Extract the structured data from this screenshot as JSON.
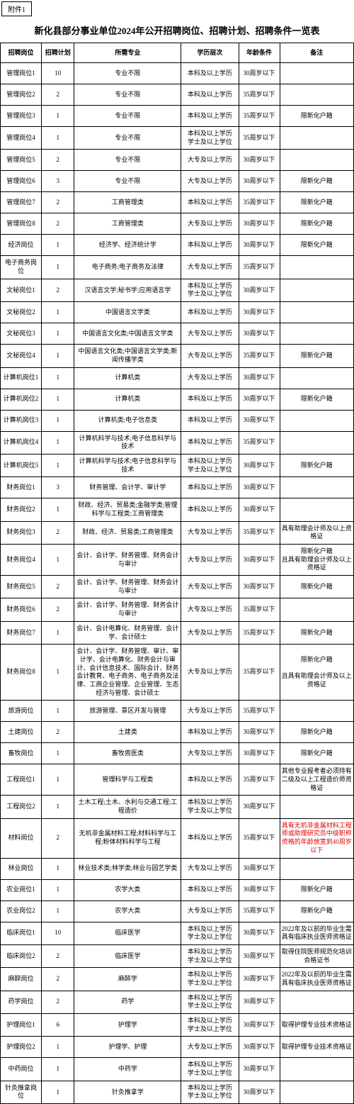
{
  "attachment": "附件1",
  "title": "新化县部分事业单位2024年公开招聘岗位、招聘计划、招聘条件一览表",
  "headers": [
    "招聘岗位",
    "招聘计划",
    "所需专业",
    "学历层次",
    "年龄条件",
    "备注"
  ],
  "rows": [
    {
      "pos": "管理岗位1",
      "plan": "10",
      "major": "专业不限",
      "edu": "本科及以上学历",
      "age": "30周岁以下",
      "remark": ""
    },
    {
      "pos": "管理岗位2",
      "plan": "2",
      "major": "专业不限",
      "edu": "本科及以上学历",
      "age": "35周岁以下",
      "remark": ""
    },
    {
      "pos": "管理岗位3",
      "plan": "1",
      "major": "专业不限",
      "edu": "本科及以上学历",
      "age": "35周岁以下",
      "remark": "限新化户籍"
    },
    {
      "pos": "管理岗位4",
      "plan": "1",
      "major": "专业不限",
      "edu": "本科及以上学历\n学士及以上学位",
      "age": "35周岁以下",
      "remark": ""
    },
    {
      "pos": "管理岗位5",
      "plan": "2",
      "major": "专业不限",
      "edu": "大专及以上学历",
      "age": "30周岁以下",
      "remark": ""
    },
    {
      "pos": "管理岗位6",
      "plan": "3",
      "major": "专业不限",
      "edu": "大专及以上学历",
      "age": "30周岁以下",
      "remark": "限新化户籍"
    },
    {
      "pos": "管理岗位7",
      "plan": "2",
      "major": "工商管理类",
      "edu": "本科及以上学历",
      "age": "35周岁以下",
      "remark": "限新化户籍"
    },
    {
      "pos": "管理岗位8",
      "plan": "2",
      "major": "工商管理类",
      "edu": "大专及以上学历",
      "age": "30周岁以下",
      "remark": "限新化户籍"
    },
    {
      "pos": "经济岗位",
      "plan": "1",
      "major": "经济学、经济统计学",
      "edu": "本科及以上学历",
      "age": "30周岁以下",
      "remark": "限新化户籍"
    },
    {
      "pos": "电子商务岗位",
      "plan": "1",
      "major": "电子商务;电子商务及法律",
      "edu": "大专及以上学历",
      "age": "35周岁以下",
      "remark": ""
    },
    {
      "pos": "文秘岗位1",
      "plan": "2",
      "major": "汉语言文学;秘书学;应用语言学",
      "edu": "本科及以上学历\n学士及以上学位",
      "age": "30周岁以下",
      "remark": ""
    },
    {
      "pos": "文秘岗位2",
      "plan": "1",
      "major": "中国语言文学类",
      "edu": "本科及以上学历",
      "age": "30周岁以下",
      "remark": ""
    },
    {
      "pos": "文秘岗位3",
      "plan": "1",
      "major": "中国语言文化类;中国语言文学类",
      "edu": "大专及以上学历",
      "age": "30周岁以下",
      "remark": ""
    },
    {
      "pos": "文秘岗位4",
      "plan": "1",
      "major": "中国语言文化类;中国语言文学类;新闻传播学类",
      "edu": "大专及以上学历",
      "age": "35周岁以下",
      "remark": "限新化户籍"
    },
    {
      "pos": "计算机岗位1",
      "plan": "1",
      "major": "计算机类",
      "edu": "大专及以上学历",
      "age": "30周岁以下",
      "remark": ""
    },
    {
      "pos": "计算机岗位2",
      "plan": "1",
      "major": "计算机类",
      "edu": "本科及以上学历",
      "age": "30周岁以下",
      "remark": "限新化户籍"
    },
    {
      "pos": "计算机岗位3",
      "plan": "1",
      "major": "计算机类;电子信息类",
      "edu": "本科及以上学历",
      "age": "30周岁以下",
      "remark": ""
    },
    {
      "pos": "计算机岗位4",
      "plan": "1",
      "major": "计算机科学与技术;电子信息科学与技术",
      "edu": "本科及以上学历",
      "age": "35周岁以下",
      "remark": ""
    },
    {
      "pos": "计算机岗位5",
      "plan": "1",
      "major": "计算机科学与技术;电子信息科学与技术",
      "edu": "本科及以上学历\n学士及以上学位",
      "age": "30周岁以下",
      "remark": "限新化户籍"
    },
    {
      "pos": "财务岗位1",
      "plan": "3",
      "major": "财务管理、会计学、审计学",
      "edu": "本科及以上学历",
      "age": "30周岁以下",
      "remark": ""
    },
    {
      "pos": "财务岗位2",
      "plan": "1",
      "major": "财政、经济、贸易类;金融学类;管理科学与工程类;工商管理类",
      "edu": "本科及以上学历",
      "age": "30周岁以下",
      "remark": ""
    },
    {
      "pos": "财务岗位3",
      "plan": "2",
      "major": "财政、经济、贸易类;工商管理类",
      "edu": "大专及以上学历",
      "age": "35周岁以下",
      "remark": "具有助理会计师及以上资格证"
    },
    {
      "pos": "财务岗位4",
      "plan": "1",
      "major": "会计、会计学、财务管理、财务会计与审计",
      "edu": "大专及以上学历",
      "age": "30周岁以下",
      "remark": "限新化户籍\n且具有助理会计师及以上资格证"
    },
    {
      "pos": "财务岗位5",
      "plan": "2",
      "major": "会计、会计学、财务管理、财务会计与审计",
      "edu": "大专及以上学历",
      "age": "30周岁以下",
      "remark": "限新化户籍"
    },
    {
      "pos": "财务岗位6",
      "plan": "2",
      "major": "会计、会计学、财务管理、财务会计与审计",
      "edu": "大专及以上学历",
      "age": "35周岁以下",
      "remark": ""
    },
    {
      "pos": "财务岗位7",
      "plan": "1",
      "major": "会计、会计电算化、财务管理、会计学、会计硕士",
      "edu": "大专及以上学历",
      "age": "35周岁以下",
      "remark": "限新化户籍"
    },
    {
      "pos": "财务岗位8",
      "plan": "1",
      "major": "会计、会计学、财务管理、审计、审计学、会计电算化、财务会计与审计、会计信息技术、国际会计、财务会计教育、电子商务、电子商务及法律、工商企业管理、企业管理、生态经济与管理、会计硕士",
      "edu": "大专及以上学历",
      "age": "35周岁以下",
      "remark": "限新化户籍\n\n且具有助理会计师及以上资格证"
    },
    {
      "pos": "旅游岗位",
      "plan": "1",
      "major": "旅游管理、景区开发与管理",
      "edu": "大专及以上学历",
      "age": "35周岁以下",
      "remark": ""
    },
    {
      "pos": "土建岗位",
      "plan": "2",
      "major": "土建类",
      "edu": "本科及以上学历",
      "age": "30周岁以下",
      "remark": "限新化户籍"
    },
    {
      "pos": "畜牧岗位",
      "plan": "1",
      "major": "畜牧兽医类",
      "edu": "大专及以上学历",
      "age": "30周岁以下",
      "remark": "限新化户籍"
    },
    {
      "pos": "工程岗位1",
      "plan": "1",
      "major": "管理科学与工程类",
      "edu": "本科及以上学历",
      "age": "35周岁以下",
      "remark": "其他专业报考者必须持有二级及以上工程造价师资格证"
    },
    {
      "pos": "工程岗位2",
      "plan": "1",
      "major": "土木工程;土木、水利与交通工程;工程造价",
      "edu": "本科及以上学历\n学士及以上学位",
      "age": "30周岁以下",
      "remark": ""
    },
    {
      "pos": "材料岗位",
      "plan": "2",
      "major": "无机非金属材料工程;材料科学与工程;粉体材料科学与工程",
      "edu": "本科及以上学历",
      "age": "35周岁以下",
      "remark": "具有无机非金属材料工程师或助理研究员中级职称资格的年龄放宽到40周岁以下",
      "remarkRed": true
    },
    {
      "pos": "林业岗位",
      "plan": "1",
      "major": "林业技术类;林学类;林业与园艺学类",
      "edu": "大专及以上学历",
      "age": "30周岁以下",
      "remark": ""
    },
    {
      "pos": "农业岗位1",
      "plan": "1",
      "major": "农学大类",
      "edu": "本科及以上学历",
      "age": "30周岁以下",
      "remark": "限新化户籍"
    },
    {
      "pos": "农业岗位2",
      "plan": "1",
      "major": "农学大类",
      "edu": "大专及以上学历",
      "age": "35周岁以下",
      "remark": "限新化户籍"
    },
    {
      "pos": "临床岗位1",
      "plan": "10",
      "major": "临床医学",
      "edu": "本科及以上学历\n学士及以上学位",
      "age": "30周岁以下",
      "remark": "2022年及以前的毕业生需具有临床执业医师资格证"
    },
    {
      "pos": "临床岗位2",
      "plan": "2",
      "major": "临床医学",
      "edu": "本科及以上学历\n学士及以上学位",
      "age": "30周岁以下",
      "remark": "取得住院医师规范化培训合格证书"
    },
    {
      "pos": "麻醉岗位",
      "plan": "2",
      "major": "麻醉学",
      "edu": "本科及以上学历\n学士及以上学位",
      "age": "30周岁以下",
      "remark": "2022年及以前的毕业生需具有临床执业医师资格证"
    },
    {
      "pos": "药学岗位",
      "plan": "2",
      "major": "药学",
      "edu": "本科及以上学历\n学士及以上学位",
      "age": "30周岁以下",
      "remark": ""
    },
    {
      "pos": "护理岗位1",
      "plan": "6",
      "major": "护理学",
      "edu": "本科及以上学历\n学士及以上学位",
      "age": "30周岁以下",
      "remark": "取得护理专业技术资格证"
    },
    {
      "pos": "护理岗位2",
      "plan": "1",
      "major": "护理学、护理",
      "edu": "大专及以上学历",
      "age": "30周岁以下",
      "remark": "取得护理专业技术资格证"
    },
    {
      "pos": "中药岗位",
      "plan": "1",
      "major": "中药学",
      "edu": "本科及以上学历\n学士及以上学位",
      "age": "30周岁以下",
      "remark": ""
    },
    {
      "pos": "针灸推拿岗位",
      "plan": "1",
      "major": "针灸推拿学",
      "edu": "本科及以上学历\n学士及以上学位",
      "age": "30周岁以下",
      "remark": ""
    }
  ]
}
